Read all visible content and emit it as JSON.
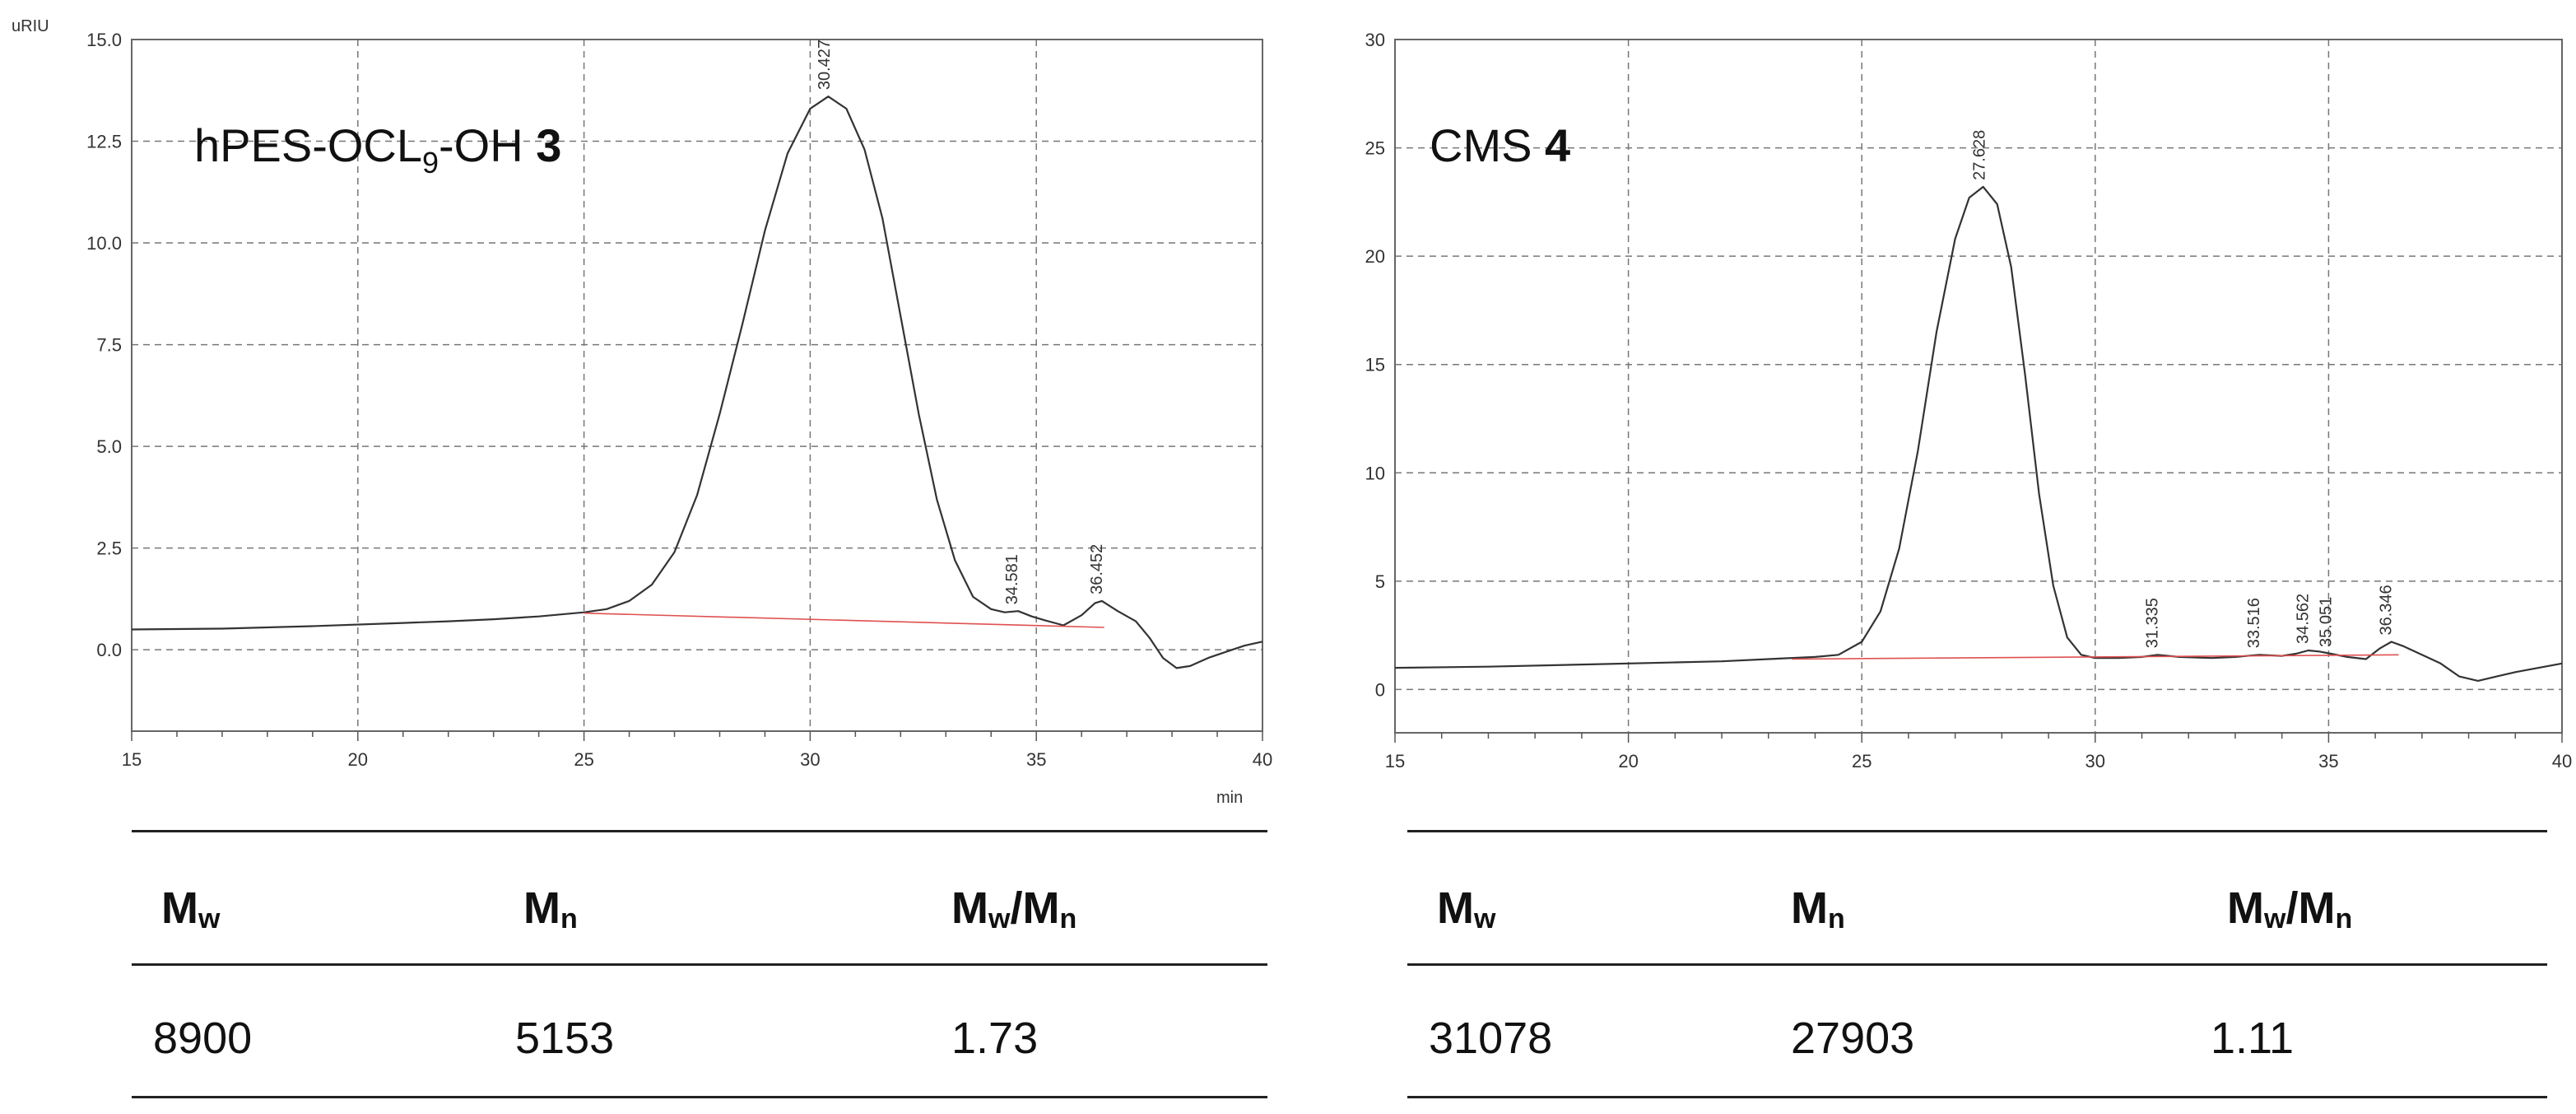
{
  "chart_data": [
    {
      "type": "line",
      "title_main": "hPES-OCL",
      "title_sub": "9",
      "title_rest": "-OH ",
      "title_bold": "3",
      "y_unit_label": "uRIU",
      "x_unit_label": "min",
      "xlim": [
        15,
        40
      ],
      "ylim": [
        -2.0,
        15.0
      ],
      "x_ticks": [
        15,
        20,
        25,
        30,
        35,
        40
      ],
      "x_tick_labels": [
        "15",
        "20",
        "25",
        "30",
        "35",
        "40"
      ],
      "y_ticks": [
        0.0,
        2.5,
        5.0,
        7.5,
        10.0,
        12.5,
        15.0
      ],
      "y_tick_labels": [
        "0.0",
        "2.5",
        "5.0",
        "7.5",
        "10.0",
        "12.5",
        "15.0"
      ],
      "grid": "dashed",
      "series": [
        {
          "x": [
            15,
            17,
            19,
            21,
            22,
            23,
            24,
            25,
            25.5,
            26,
            26.5,
            27,
            27.5,
            28,
            28.5,
            29,
            29.5,
            30,
            30.4,
            30.8,
            31.2,
            31.6,
            32,
            32.4,
            32.8,
            33.2,
            33.6,
            34,
            34.3,
            34.6,
            34.9,
            35.2,
            35.6,
            36,
            36.3,
            36.45,
            36.8,
            37.2,
            37.5,
            37.8,
            38.1,
            38.4,
            38.8,
            39.2,
            39.6,
            40
          ],
          "y": [
            0.5,
            0.52,
            0.58,
            0.66,
            0.7,
            0.75,
            0.82,
            0.92,
            1.0,
            1.2,
            1.6,
            2.4,
            3.8,
            5.8,
            8.0,
            10.3,
            12.2,
            13.3,
            13.6,
            13.3,
            12.3,
            10.6,
            8.2,
            5.8,
            3.7,
            2.2,
            1.3,
            1.0,
            0.92,
            0.95,
            0.82,
            0.72,
            0.6,
            0.85,
            1.15,
            1.2,
            0.95,
            0.7,
            0.3,
            -0.2,
            -0.45,
            -0.4,
            -0.2,
            -0.05,
            0.1,
            0.2
          ],
          "color": "#333333"
        },
        {
          "x": [
            25,
            36.5
          ],
          "y": [
            0.9,
            0.55
          ],
          "color": "#e05050"
        }
      ],
      "peaks": [
        {
          "x": 30.427,
          "y": 13.6,
          "label": "30.427"
        },
        {
          "x": 34.581,
          "y": 0.95,
          "label": "34.581"
        },
        {
          "x": 36.452,
          "y": 1.2,
          "label": "36.452"
        }
      ],
      "table": {
        "headers": [
          "M",
          "M",
          "M"
        ],
        "header_subs": [
          "w",
          "n",
          "w"
        ],
        "header_suffix": [
          "",
          "",
          "/M"
        ],
        "header_suffix_sub": [
          "",
          "",
          "n"
        ],
        "values": [
          "8900",
          "5153",
          "1.73"
        ]
      }
    },
    {
      "type": "line",
      "title_main": "CMS ",
      "title_bold": "4",
      "xlim": [
        15,
        40
      ],
      "ylim": [
        -2,
        30
      ],
      "x_ticks": [
        15,
        20,
        25,
        30,
        35,
        40
      ],
      "x_tick_labels": [
        "15",
        "20",
        "25",
        "30",
        "35",
        "40"
      ],
      "y_ticks": [
        0,
        5,
        10,
        15,
        20,
        25,
        30
      ],
      "y_tick_labels": [
        "0",
        "5",
        "10",
        "15",
        "20",
        "25",
        "30"
      ],
      "grid": "dashed",
      "series": [
        {
          "x": [
            15,
            17,
            19,
            21,
            22,
            23,
            24,
            24.5,
            25,
            25.4,
            25.8,
            26.2,
            26.6,
            27,
            27.3,
            27.6,
            27.9,
            28.2,
            28.5,
            28.8,
            29.1,
            29.4,
            29.7,
            30,
            30.5,
            31,
            31.335,
            31.8,
            32.5,
            33,
            33.516,
            34,
            34.3,
            34.562,
            34.8,
            35.051,
            35.4,
            35.8,
            36.1,
            36.346,
            36.6,
            37,
            37.4,
            37.8,
            38.2,
            38.6,
            39,
            39.5,
            40
          ],
          "y": [
            1.0,
            1.05,
            1.15,
            1.25,
            1.3,
            1.4,
            1.5,
            1.6,
            2.2,
            3.6,
            6.5,
            11.0,
            16.5,
            20.8,
            22.7,
            23.2,
            22.4,
            19.5,
            14.5,
            9.0,
            4.8,
            2.4,
            1.6,
            1.45,
            1.45,
            1.5,
            1.6,
            1.5,
            1.45,
            1.5,
            1.6,
            1.55,
            1.65,
            1.8,
            1.75,
            1.65,
            1.5,
            1.4,
            1.9,
            2.2,
            2.0,
            1.6,
            1.2,
            0.6,
            0.4,
            0.6,
            0.8,
            1.0,
            1.2
          ],
          "color": "#333333"
        },
        {
          "x": [
            23.5,
            36.5
          ],
          "y": [
            1.4,
            1.6
          ],
          "color": "#e05050"
        }
      ],
      "peaks": [
        {
          "x": 27.628,
          "y": 23.2,
          "label": "27.628"
        },
        {
          "x": 31.335,
          "y": 1.6,
          "label": "31.335"
        },
        {
          "x": 33.516,
          "y": 1.6,
          "label": "33.516"
        },
        {
          "x": 34.562,
          "y": 1.8,
          "label": "34.562"
        },
        {
          "x": 35.051,
          "y": 1.65,
          "label": "35.051"
        },
        {
          "x": 36.346,
          "y": 2.2,
          "label": "36.346"
        }
      ],
      "table": {
        "headers": [
          "M",
          "M",
          "M"
        ],
        "header_subs": [
          "w",
          "n",
          "w"
        ],
        "header_suffix": [
          "",
          "",
          "/M"
        ],
        "header_suffix_sub": [
          "",
          "",
          "n"
        ],
        "values": [
          "31078",
          "27903",
          "1.11"
        ]
      }
    }
  ]
}
